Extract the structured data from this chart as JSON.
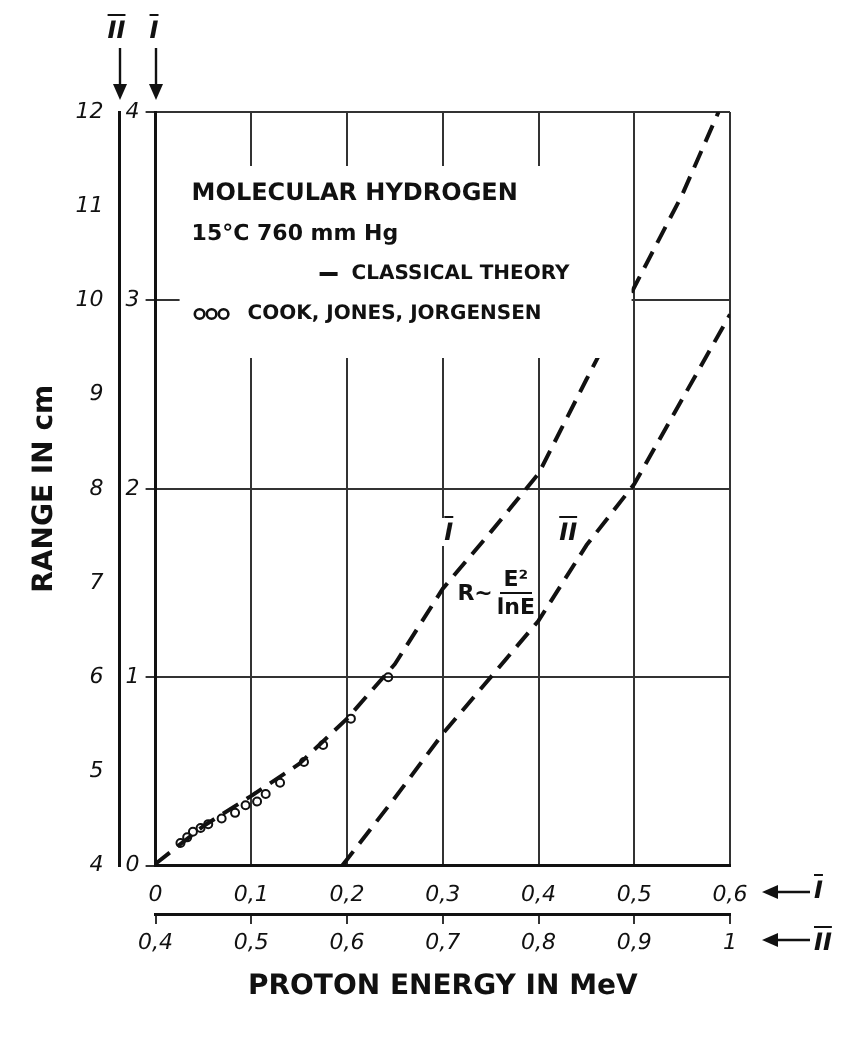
{
  "chart_data": {
    "type": "line",
    "title": "MOLECULAR HYDROGEN",
    "subtitle": "15°C 760 mm Hg",
    "xlabel": "PROTON ENERGY IN MeV",
    "y2label": "RANGE IN cm",
    "xlim": [
      0.4,
      1
    ],
    "xticks": [
      {
        "value": 0.4,
        "label": "0,4"
      },
      {
        "value": 0.5,
        "label": "0,5"
      },
      {
        "value": 0.6,
        "label": "0,6"
      },
      {
        "value": 0.7,
        "label": "0,7"
      },
      {
        "value": 0.8,
        "label": "0,8"
      },
      {
        "value": 0.9,
        "label": "0,9"
      },
      1
    ],
    "x2lim": [
      0,
      0.6
    ],
    "x2ticks": [
      0,
      {
        "value": 0.1,
        "label": "0,1"
      },
      {
        "value": 0.2,
        "label": "0,2"
      },
      {
        "value": 0.3,
        "label": "0,3"
      },
      {
        "value": 0.4,
        "label": "0,4"
      },
      {
        "value": 0.5,
        "label": "0,5"
      },
      {
        "value": 0.6,
        "label": "0,6"
      }
    ],
    "ylim": [
      0,
      4
    ],
    "yticks": [
      0,
      1,
      2,
      3,
      4
    ],
    "y2lim": [
      4,
      12
    ],
    "y2ticks": [
      4,
      5,
      6,
      7,
      8,
      9,
      10,
      11,
      12
    ],
    "grid": true,
    "legend": "top left",
    "series": [
      {
        "name": "CLASSICAL THEORY",
        "type": "line",
        "axis": "x2",
        "color": "#111111",
        "line_style": "dashed",
        "marker": "none",
        "x": [
          0,
          0.05,
          0.1,
          0.15,
          0.2,
          0.25,
          0.3,
          0.35,
          0.4,
          0.45,
          0.5,
          0.55,
          0.588
        ],
        "values": [
          0.01,
          0.21,
          0.37,
          0.54,
          0.78,
          1.07,
          1.47,
          1.77,
          2.08,
          2.58,
          3.07,
          3.56,
          4.0
        ]
      },
      {
        "type": "line",
        "axis": "y2",
        "color": "#111111",
        "line_style": "dashed",
        "marker": "none",
        "x": [
          0.595,
          0.65,
          0.7,
          0.75,
          0.8,
          0.85,
          0.9,
          0.95,
          1.0
        ],
        "values": [
          4.0,
          4.72,
          5.4,
          6.0,
          6.6,
          7.4,
          8.05,
          8.95,
          9.85
        ]
      },
      {
        "name": "COOK, JONES, JORGENSEN",
        "type": "scatter",
        "axis": "x2",
        "color": "#111111",
        "marker": "circle",
        "x": [
          0.026,
          0.033,
          0.039,
          0.047,
          0.055,
          0.069,
          0.083,
          0.094,
          0.106,
          0.115,
          0.13,
          0.155,
          0.175,
          0.204,
          0.243
        ],
        "values": [
          0.12,
          0.15,
          0.18,
          0.2,
          0.22,
          0.25,
          0.28,
          0.32,
          0.34,
          0.38,
          0.44,
          0.55,
          0.64,
          0.78,
          1.0
        ]
      }
    ],
    "annotations": [
      "I",
      "II",
      "I",
      "II",
      {
        "text": "I",
        "x": 0.71,
        "y": 1.77
      },
      {
        "text": "II",
        "x": 0.83,
        "y": 1.77
      },
      "R~",
      "E²",
      "lnE"
    ]
  }
}
